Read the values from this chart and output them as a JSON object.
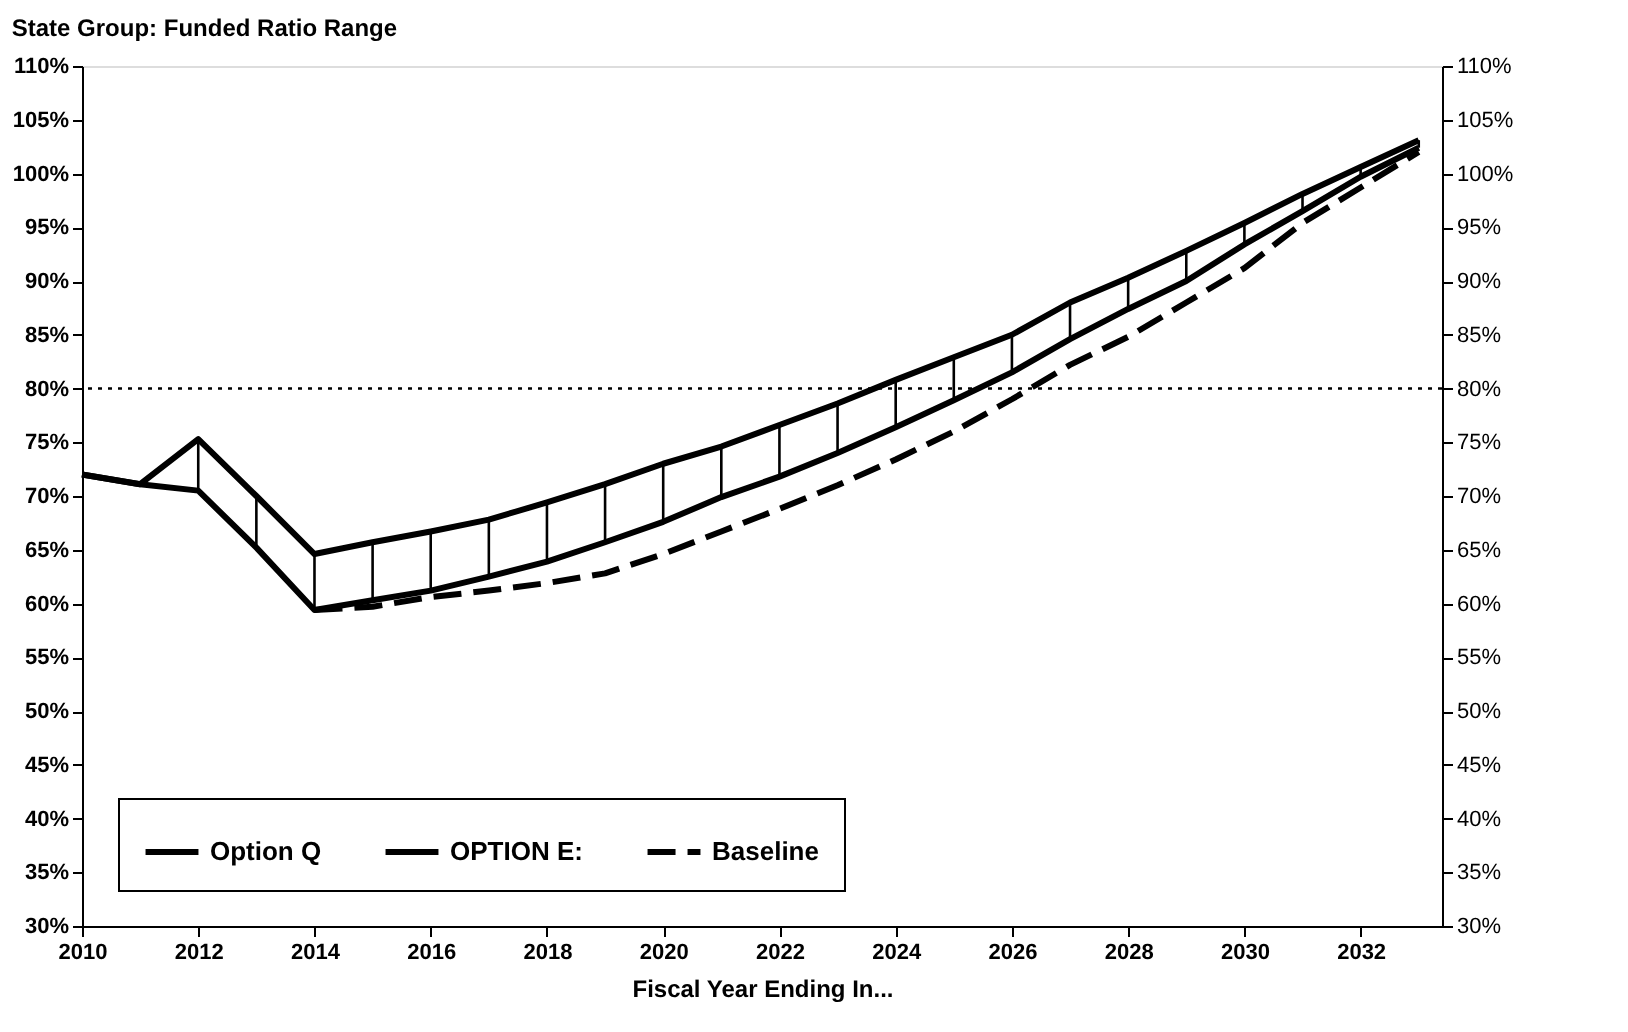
{
  "chart_data": {
    "type": "line",
    "title": "State Group: Funded Ratio Range",
    "xlabel": "Fiscal Year Ending In...",
    "x": [
      2010,
      2011,
      2012,
      2013,
      2014,
      2015,
      2016,
      2017,
      2018,
      2019,
      2020,
      2021,
      2022,
      2023,
      2024,
      2025,
      2026,
      2027,
      2028,
      2029,
      2030,
      2031,
      2032,
      2033
    ],
    "series": [
      {
        "name": "Option Q",
        "color": "#000000",
        "line_style": "solid",
        "values": [
          72,
          71.1,
          75.3,
          70,
          64.6,
          65.7,
          66.7,
          67.8,
          69.4,
          71.1,
          73.0,
          74.6,
          76.6,
          78.6,
          80.8,
          82.9,
          85.0,
          88.0,
          90.3,
          92.8,
          95.4,
          98.1,
          100.6,
          103.1
        ]
      },
      {
        "name": "OPTION E:",
        "color": "#000000",
        "line_style": "solid",
        "values": [
          72,
          71.1,
          70.5,
          65.2,
          59.4,
          60.3,
          61.2,
          62.5,
          63.9,
          65.7,
          67.6,
          69.9,
          71.8,
          74.0,
          76.4,
          78.9,
          81.5,
          84.6,
          87.4,
          90.0,
          93.4,
          96.5,
          99.7,
          102.4
        ],
        "errors": [
          null,
          null,
          [
            70.5,
            75.3
          ],
          [
            65.2,
            70
          ],
          [
            59.4,
            64.6
          ],
          [
            60.3,
            65.7
          ],
          [
            61.2,
            66.7
          ],
          [
            62.5,
            67.8
          ],
          [
            63.9,
            69.4
          ],
          [
            65.7,
            71.1
          ],
          [
            67.6,
            73.0
          ],
          [
            69.9,
            74.6
          ],
          [
            71.8,
            76.6
          ],
          [
            74.0,
            78.6
          ],
          [
            76.4,
            80.8
          ],
          [
            78.9,
            82.9
          ],
          [
            81.5,
            85.0
          ],
          [
            84.6,
            88.0
          ],
          [
            87.4,
            90.3
          ],
          [
            90.0,
            92.8
          ],
          [
            93.4,
            95.4
          ],
          [
            96.5,
            98.1
          ],
          [
            99.7,
            100.6
          ],
          [
            102.4,
            103.1
          ]
        ]
      },
      {
        "name": "Baseline",
        "color": "#000000",
        "line_style": "dashed",
        "values": [
          null,
          null,
          null,
          null,
          59.4,
          59.7,
          60.6,
          61.2,
          61.9,
          62.8,
          64.6,
          66.7,
          68.8,
          71.0,
          73.4,
          76.0,
          79.0,
          82.2,
          84.8,
          88.0,
          91.2,
          95.4,
          98.7,
          102.0
        ]
      }
    ],
    "xlim": [
      2010,
      2033.4
    ],
    "xticks": [
      2010,
      2012,
      2014,
      2016,
      2018,
      2020,
      2022,
      2024,
      2026,
      2028,
      2030,
      2032
    ],
    "ylim": [
      30,
      110
    ],
    "yticks": [
      {
        "value": 30,
        "label": "30%"
      },
      {
        "value": 35,
        "label": "35%"
      },
      {
        "value": 40,
        "label": "40%"
      },
      {
        "value": 45,
        "label": "45%"
      },
      {
        "value": 50,
        "label": "50%"
      },
      {
        "value": 55,
        "label": "55%"
      },
      {
        "value": 60,
        "label": "60%"
      },
      {
        "value": 65,
        "label": "65%"
      },
      {
        "value": 70,
        "label": "70%"
      },
      {
        "value": 75,
        "label": "75%"
      },
      {
        "value": 80,
        "label": "80%"
      },
      {
        "value": 85,
        "label": "85%"
      },
      {
        "value": 90,
        "label": "90%"
      },
      {
        "value": 95,
        "label": "95%"
      },
      {
        "value": 100,
        "label": "100%"
      },
      {
        "value": 105,
        "label": "105%"
      },
      {
        "value": 110,
        "label": "110%"
      }
    ],
    "y2lim": [
      30,
      110
    ],
    "y2ticks": [
      {
        "value": 30,
        "label": "30%"
      },
      {
        "value": 35,
        "label": "35%"
      },
      {
        "value": 40,
        "label": "40%"
      },
      {
        "value": 45,
        "label": "45%"
      },
      {
        "value": 50,
        "label": "50%"
      },
      {
        "value": 55,
        "label": "55%"
      },
      {
        "value": 60,
        "label": "60%"
      },
      {
        "value": 65,
        "label": "65%"
      },
      {
        "value": 70,
        "label": "70%"
      },
      {
        "value": 75,
        "label": "75%"
      },
      {
        "value": 80,
        "label": "80%"
      },
      {
        "value": 85,
        "label": "85%"
      },
      {
        "value": 90,
        "label": "90%"
      },
      {
        "value": 95,
        "label": "95%"
      },
      {
        "value": 100,
        "label": "100%"
      },
      {
        "value": 105,
        "label": "105%"
      },
      {
        "value": 110,
        "label": "110%"
      }
    ],
    "ref_lines": [
      {
        "axis": "y",
        "value": 80,
        "line_style": "dotted",
        "color": "#000000"
      }
    ],
    "legend": "bottom left",
    "grid": false,
    "marker": "none"
  }
}
